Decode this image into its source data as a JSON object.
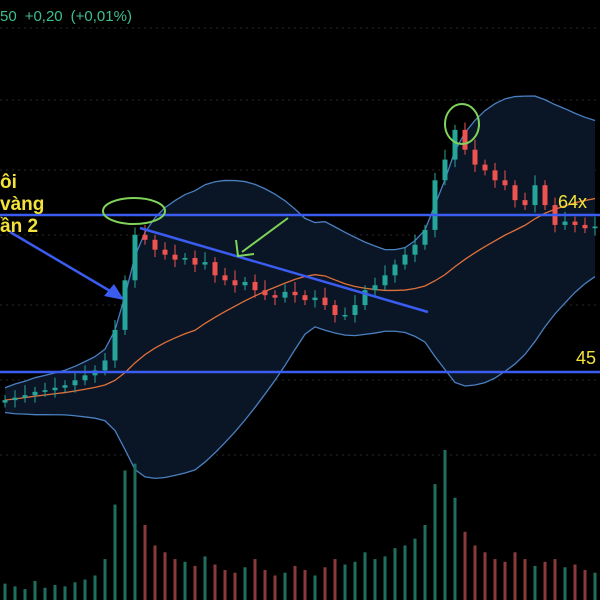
{
  "header": {
    "price_fragment": "50",
    "change": "+0,20",
    "change_pct": "(+0,01%)"
  },
  "annotation": {
    "lines": [
      "ôi",
      "vàng",
      "ần 2"
    ]
  },
  "colors": {
    "up": "#26a69a",
    "down": "#ef5350",
    "ma": "#e0703a",
    "bands": "#4a7fc0",
    "band_fill": "#0a1626",
    "level_line": "#3a5cf0",
    "annotation_text": "#f2e23a",
    "circle": "#7fd35a"
  },
  "chart_data": {
    "type": "candlestick",
    "indicators": [
      "Bollinger Bands (20)",
      "moving average"
    ],
    "grid": false,
    "levels": [
      {
        "value": 64,
        "label": "64x"
      },
      {
        "value": 45,
        "label": "45"
      }
    ],
    "closes": [
      41.6,
      41.9,
      42.2,
      42.6,
      42.8,
      43.1,
      43.4,
      44.0,
      44.6,
      45.2,
      46.4,
      50.1,
      56.1,
      61.6,
      61.0,
      59.8,
      59.2,
      58.6,
      58.8,
      58.0,
      58.3,
      56.7,
      56.1,
      55.5,
      55.9,
      54.9,
      54.3,
      54.0,
      54.7,
      54.3,
      53.7,
      54.0,
      53.1,
      51.9,
      51.9,
      53.1,
      54.9,
      55.5,
      56.7,
      58.0,
      59.2,
      60.4,
      62.2,
      68.2,
      70.7,
      74.3,
      71.9,
      70.1,
      69.4,
      68.2,
      67.6,
      65.8,
      65.2,
      67.6,
      65.2,
      62.8,
      63.2,
      62.8,
      62.4,
      62.6
    ],
    "volumes": [
      12,
      10,
      8,
      14,
      9,
      11,
      10,
      13,
      15,
      18,
      30,
      70,
      95,
      100,
      55,
      40,
      35,
      30,
      28,
      25,
      32,
      26,
      22,
      20,
      24,
      30,
      22,
      18,
      20,
      25,
      22,
      18,
      24,
      30,
      26,
      28,
      35,
      30,
      32,
      38,
      40,
      45,
      55,
      85,
      110,
      75,
      50,
      40,
      35,
      30,
      28,
      35,
      30,
      25,
      28,
      30,
      24,
      26,
      22,
      20
    ]
  }
}
